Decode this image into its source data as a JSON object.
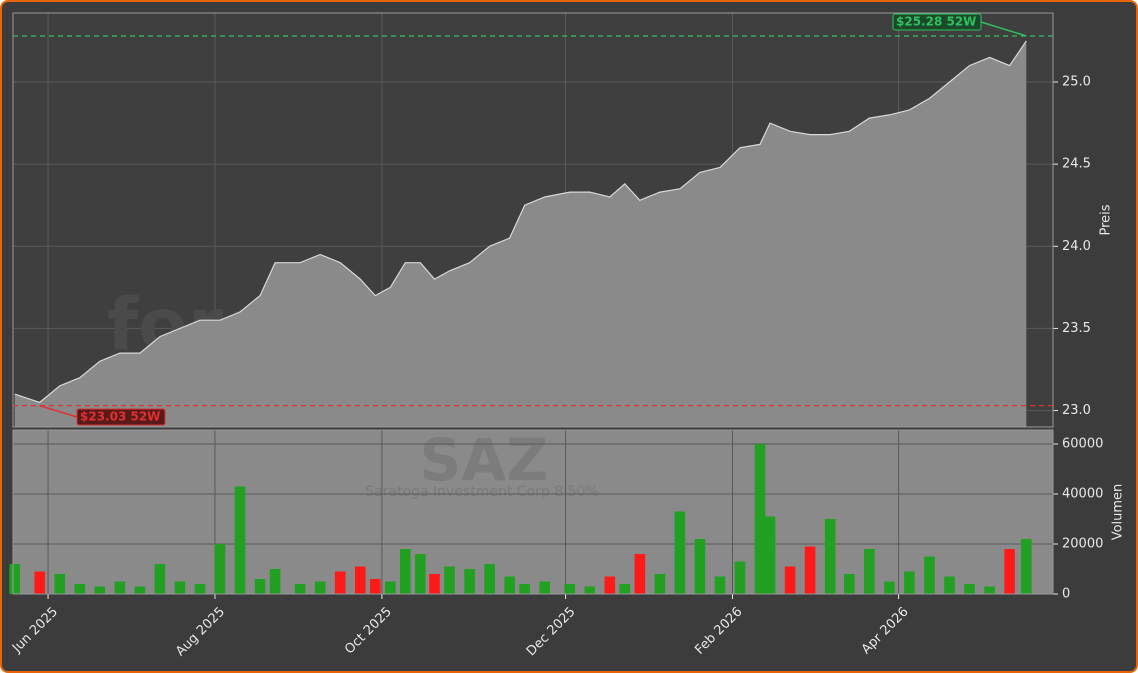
{
  "chart_data": [
    {
      "type": "area",
      "watermark": "forexsignale.trade",
      "title": "SAZ",
      "subtitle": "Saratoga Investment Corp 8.50%",
      "ylabel": "Preis",
      "x": [
        0.6,
        0.9,
        1.14,
        1.38,
        1.62,
        1.86,
        2.1,
        2.34,
        2.58,
        2.82,
        3.06,
        3.3,
        3.54,
        3.72,
        4.02,
        4.26,
        4.5,
        4.74,
        4.92,
        5.1,
        5.28,
        5.46,
        5.63,
        5.81,
        6.05,
        6.29,
        6.53,
        6.71,
        6.95,
        7.25,
        7.49,
        7.73,
        7.91,
        8.09,
        8.33,
        8.57,
        8.81,
        9.05,
        9.29,
        9.53,
        9.65,
        9.89,
        10.13,
        10.37,
        10.6,
        10.84,
        11.08,
        11.32,
        11.56,
        11.8,
        12.04,
        12.28,
        12.52,
        12.72
      ],
      "values": [
        23.1,
        23.05,
        23.15,
        23.2,
        23.3,
        23.35,
        23.35,
        23.45,
        23.5,
        23.55,
        23.55,
        23.6,
        23.7,
        23.9,
        23.9,
        23.95,
        23.9,
        23.8,
        23.7,
        23.75,
        23.9,
        23.9,
        23.8,
        23.85,
        23.9,
        24.0,
        24.05,
        24.25,
        24.3,
        24.33,
        24.33,
        24.3,
        24.38,
        24.28,
        24.33,
        24.35,
        24.45,
        24.48,
        24.6,
        24.62,
        24.75,
        24.7,
        24.68,
        24.68,
        24.7,
        24.78,
        24.8,
        24.83,
        24.9,
        25.0,
        25.1,
        25.15,
        25.1,
        25.25
      ],
      "color": "#d8d8d8",
      "fill": "#8a8a8a",
      "xlim": [
        0.58,
        13.04
      ],
      "xticks": [
        1,
        3,
        5,
        7.2,
        9.2,
        11.19
      ],
      "ylim": [
        22.9,
        25.42
      ],
      "yticks": [
        {
          "value": 23,
          "label": "23.0"
        },
        23.5,
        {
          "value": 24,
          "label": "24.0"
        },
        24.5,
        {
          "value": 25,
          "label": "25.0"
        }
      ],
      "grid": true,
      "annotations": [
        {
          "value": 23.03,
          "label": "$23.03 52W",
          "color": "#e03030"
        },
        {
          "value": 25.28,
          "label": "$25.28 52W",
          "color": "#30c060"
        }
      ]
    },
    {
      "type": "bar",
      "ylabel": "Volumen",
      "x": [
        0.6,
        0.9,
        1.14,
        1.38,
        1.62,
        1.86,
        2.1,
        2.34,
        2.58,
        2.82,
        3.06,
        3.3,
        3.54,
        3.72,
        4.02,
        4.26,
        4.5,
        4.74,
        4.92,
        5.1,
        5.28,
        5.46,
        5.63,
        5.81,
        6.05,
        6.29,
        6.53,
        6.71,
        6.95,
        7.25,
        7.49,
        7.73,
        7.91,
        8.09,
        8.33,
        8.57,
        8.81,
        9.05,
        9.29,
        9.53,
        9.65,
        9.89,
        10.13,
        10.37,
        10.6,
        10.84,
        11.08,
        11.32,
        11.56,
        11.8,
        12.04,
        12.28,
        12.52,
        12.72
      ],
      "values": [
        12000,
        9000,
        8000,
        4000,
        3000,
        5000,
        3000,
        12000,
        5000,
        4000,
        20000,
        43000,
        6000,
        10000,
        4000,
        5000,
        9000,
        11000,
        6000,
        5000,
        18000,
        16000,
        8000,
        11000,
        10000,
        12000,
        7000,
        4000,
        5000,
        4000,
        3000,
        7000,
        4000,
        16000,
        8000,
        33000,
        22000,
        7000,
        13000,
        60000,
        31000,
        11000,
        19000,
        30000,
        8000,
        18000,
        5000,
        9000,
        15000,
        7000,
        4000,
        3000,
        18000,
        22000
      ],
      "up_color": "#22a022",
      "down_color": "#ff1a1a",
      "xlim": [
        0.58,
        13.04
      ],
      "xticks": [
        {
          "value": 1,
          "label": "Jun 2025"
        },
        {
          "value": 3,
          "label": "Aug 2025"
        },
        {
          "value": 5,
          "label": "Oct 2025"
        },
        {
          "value": 7.2,
          "label": "Dec 2025"
        },
        {
          "value": 9.2,
          "label": "Feb 2026"
        },
        {
          "value": 11.19,
          "label": "Apr 2026"
        }
      ],
      "ylim": [
        0,
        65600
      ],
      "yticks": [
        0,
        20000,
        40000,
        60000
      ],
      "grid": true
    }
  ]
}
